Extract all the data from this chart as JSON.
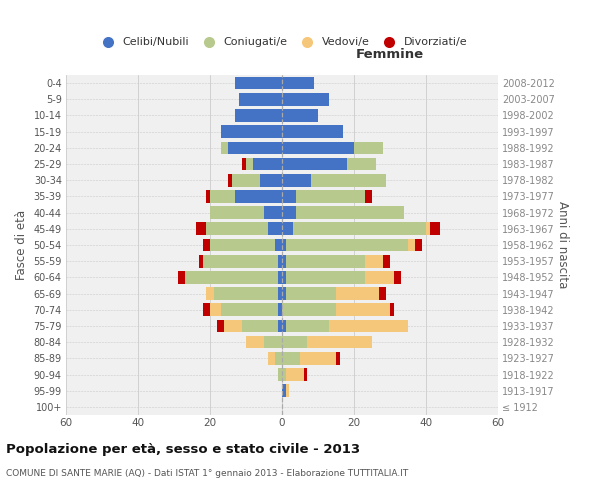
{
  "age_groups": [
    "100+",
    "95-99",
    "90-94",
    "85-89",
    "80-84",
    "75-79",
    "70-74",
    "65-69",
    "60-64",
    "55-59",
    "50-54",
    "45-49",
    "40-44",
    "35-39",
    "30-34",
    "25-29",
    "20-24",
    "15-19",
    "10-14",
    "5-9",
    "0-4"
  ],
  "birth_years": [
    "≤ 1912",
    "1913-1917",
    "1918-1922",
    "1923-1927",
    "1928-1932",
    "1933-1937",
    "1938-1942",
    "1943-1947",
    "1948-1952",
    "1953-1957",
    "1958-1962",
    "1963-1967",
    "1968-1972",
    "1973-1977",
    "1978-1982",
    "1983-1987",
    "1988-1992",
    "1993-1997",
    "1998-2002",
    "2003-2007",
    "2008-2012"
  ],
  "male": {
    "celibi": [
      0,
      0,
      0,
      0,
      0,
      1,
      1,
      1,
      1,
      1,
      2,
      4,
      5,
      13,
      6,
      8,
      15,
      17,
      13,
      12,
      13
    ],
    "coniugati": [
      0,
      0,
      1,
      2,
      5,
      10,
      16,
      18,
      26,
      21,
      18,
      17,
      15,
      7,
      8,
      2,
      2,
      0,
      0,
      0,
      0
    ],
    "vedovi": [
      0,
      0,
      0,
      2,
      5,
      5,
      3,
      2,
      0,
      0,
      0,
      0,
      0,
      0,
      0,
      0,
      0,
      0,
      0,
      0,
      0
    ],
    "divorziati": [
      0,
      0,
      0,
      0,
      0,
      2,
      2,
      0,
      2,
      1,
      2,
      3,
      0,
      1,
      1,
      1,
      0,
      0,
      0,
      0,
      0
    ]
  },
  "female": {
    "nubili": [
      0,
      1,
      0,
      0,
      0,
      1,
      0,
      1,
      1,
      1,
      1,
      3,
      4,
      4,
      8,
      18,
      20,
      17,
      10,
      13,
      9
    ],
    "coniugate": [
      0,
      0,
      1,
      5,
      7,
      12,
      15,
      14,
      22,
      22,
      34,
      37,
      30,
      19,
      21,
      8,
      8,
      0,
      0,
      0,
      0
    ],
    "vedove": [
      0,
      1,
      5,
      10,
      18,
      22,
      15,
      12,
      8,
      5,
      2,
      1,
      0,
      0,
      0,
      0,
      0,
      0,
      0,
      0,
      0
    ],
    "divorziate": [
      0,
      0,
      1,
      1,
      0,
      0,
      1,
      2,
      2,
      2,
      2,
      3,
      0,
      2,
      0,
      0,
      0,
      0,
      0,
      0,
      0
    ]
  },
  "colors": {
    "celibi_nubili": "#4472c4",
    "coniugati_e": "#b8c98d",
    "vedovi_e": "#f5c77a",
    "divorziati_e": "#c00000"
  },
  "xlim": 60,
  "title": "Popolazione per età, sesso e stato civile - 2013",
  "subtitle": "COMUNE DI SANTE MARIE (AQ) - Dati ISTAT 1° gennaio 2013 - Elaborazione TUTTITALIA.IT",
  "ylabel_left": "Fasce di età",
  "ylabel_right": "Anni di nascita",
  "xlabel_right": "Femmine",
  "bg_color": "#f0f0f0",
  "grid_color": "#cccccc",
  "legend_labels": [
    "Celibi/Nubili",
    "Coniugati/e",
    "Vedovi/e",
    "Divorziati/e"
  ]
}
